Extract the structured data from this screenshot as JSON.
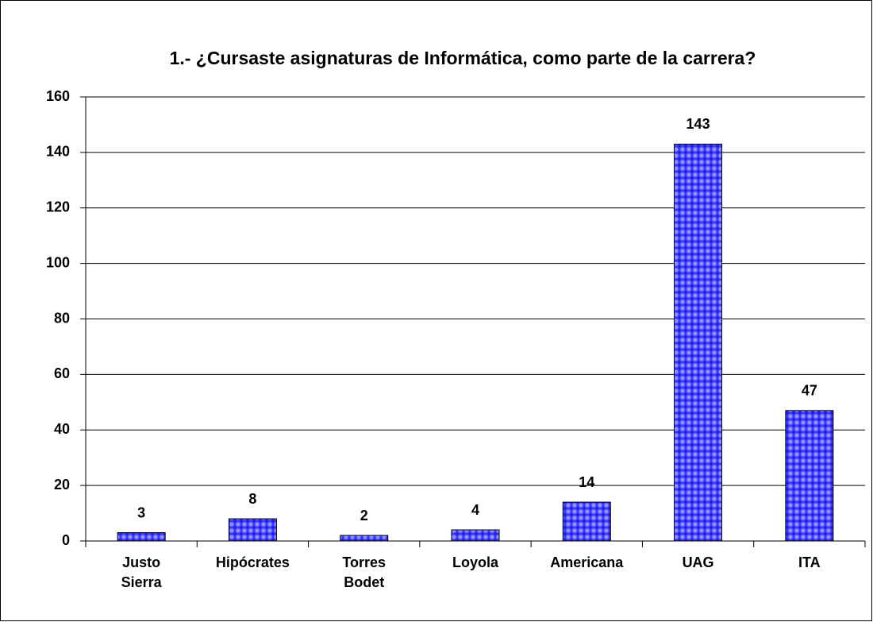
{
  "chart_data": {
    "type": "bar",
    "title": "1.- ¿Cursaste asignaturas de Informática, como parte de la carrera?",
    "categories": [
      "Justo Sierra",
      "Hipócrates",
      "Torres Bodet",
      "Loyola",
      "Americana",
      "UAG",
      "ITA"
    ],
    "values": [
      3,
      8,
      2,
      4,
      14,
      143,
      47
    ],
    "color": "#3333ff",
    "ylim": [
      0,
      160
    ],
    "yticks": [
      0,
      20,
      40,
      60,
      80,
      100,
      120,
      140,
      160
    ],
    "grid": true
  }
}
